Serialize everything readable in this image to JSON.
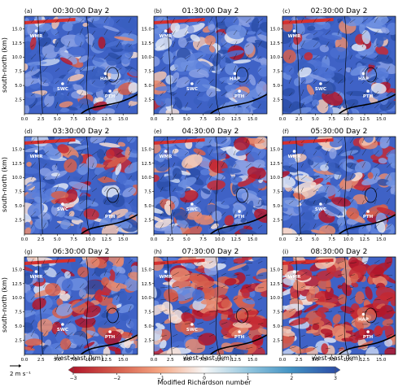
{
  "figure": {
    "colorbar_label": "Modified Richardson number",
    "colorbar_ticks": [
      "−3",
      "−2",
      "−1",
      "0",
      "1",
      "2",
      "3"
    ],
    "colorbar_range": [
      -3,
      3
    ],
    "colormap": [
      "#b2182b",
      "#d6604d",
      "#f4a582",
      "#f7f7f7",
      "#92c5de",
      "#4393c3",
      "#2c4fa8"
    ],
    "wind_scale_label": "2 m s⁻¹",
    "ylabel": "south-north (km)",
    "xlabel": "west-east (km)",
    "x_ticks": [
      "0.0",
      "2.5",
      "5.0",
      "7.5",
      "10.0",
      "12.5",
      "15.0"
    ],
    "y_ticks": [
      "2.5",
      "5.0",
      "7.5",
      "10.0",
      "12.5",
      "15.0"
    ]
  },
  "chart_data": [
    {
      "panel": "(a)",
      "title": "00:30:00 Day 2",
      "type": "heatmap",
      "red_fraction": 0.05,
      "sites": [
        {
          "label": "WMR",
          "x": 1.8,
          "y": 14.6
        },
        {
          "label": "HAP",
          "x": 12.3,
          "y": 7.1
        },
        {
          "label": "SWC",
          "x": 5.8,
          "y": 5.3
        },
        {
          "label": "PTH",
          "x": 13.0,
          "y": 4.0
        }
      ]
    },
    {
      "panel": "(b)",
      "title": "01:30:00 Day 2",
      "type": "heatmap",
      "red_fraction": 0.06,
      "sites": [
        {
          "label": "WMR",
          "x": 1.8,
          "y": 14.6
        },
        {
          "label": "HAP",
          "x": 12.3,
          "y": 7.1
        },
        {
          "label": "SWC",
          "x": 5.8,
          "y": 5.3
        },
        {
          "label": "PTH",
          "x": 13.0,
          "y": 4.0
        }
      ]
    },
    {
      "panel": "(c)",
      "title": "02:30:00 Day 2",
      "type": "heatmap",
      "red_fraction": 0.08,
      "sites": [
        {
          "label": "WMR",
          "x": 1.8,
          "y": 14.6
        },
        {
          "label": "HAP",
          "x": 12.3,
          "y": 7.1
        },
        {
          "label": "SWC",
          "x": 5.8,
          "y": 5.3
        },
        {
          "label": "PTH",
          "x": 13.0,
          "y": 4.0
        }
      ]
    },
    {
      "panel": "(d)",
      "title": "03:30:00 Day 2",
      "type": "heatmap",
      "red_fraction": 0.2,
      "sites": [
        {
          "label": "WMR",
          "x": 1.8,
          "y": 14.6
        },
        {
          "label": "SWC",
          "x": 5.8,
          "y": 5.3
        },
        {
          "label": "PTH",
          "x": 13.0,
          "y": 4.0
        }
      ]
    },
    {
      "panel": "(e)",
      "title": "04:30:00 Day 2",
      "type": "heatmap",
      "red_fraction": 0.18,
      "sites": [
        {
          "label": "WMR",
          "x": 1.8,
          "y": 14.6
        },
        {
          "label": "SWC",
          "x": 5.8,
          "y": 5.3
        },
        {
          "label": "PTH",
          "x": 13.0,
          "y": 4.0
        }
      ]
    },
    {
      "panel": "(f)",
      "title": "05:30:00 Day 2",
      "type": "heatmap",
      "red_fraction": 0.22,
      "sites": [
        {
          "label": "WMR",
          "x": 1.8,
          "y": 14.6
        },
        {
          "label": "SWC",
          "x": 5.8,
          "y": 5.3
        },
        {
          "label": "PTH",
          "x": 13.0,
          "y": 4.0
        }
      ]
    },
    {
      "panel": "(g)",
      "title": "06:30:00 Day 2",
      "type": "heatmap",
      "red_fraction": 0.3,
      "sites": [
        {
          "label": "WMR",
          "x": 1.8,
          "y": 14.6
        },
        {
          "label": "SWC",
          "x": 5.8,
          "y": 5.3
        },
        {
          "label": "PTH",
          "x": 13.0,
          "y": 4.0
        }
      ]
    },
    {
      "panel": "(h)",
      "title": "07:30:00 Day 2",
      "type": "heatmap",
      "red_fraction": 0.55,
      "sites": [
        {
          "label": "WMR",
          "x": 1.8,
          "y": 14.6
        },
        {
          "label": "SWC",
          "x": 5.8,
          "y": 5.3
        },
        {
          "label": "PTH",
          "x": 13.0,
          "y": 4.0
        }
      ]
    },
    {
      "panel": "(i)",
      "title": "08:30:00 Day 2",
      "type": "heatmap",
      "red_fraction": 0.92,
      "sites": [
        {
          "label": "WMR",
          "x": 1.8,
          "y": 14.6
        },
        {
          "label": "HAP",
          "x": 12.3,
          "y": 7.1
        },
        {
          "label": "PTH",
          "x": 13.0,
          "y": 4.0
        }
      ]
    }
  ]
}
